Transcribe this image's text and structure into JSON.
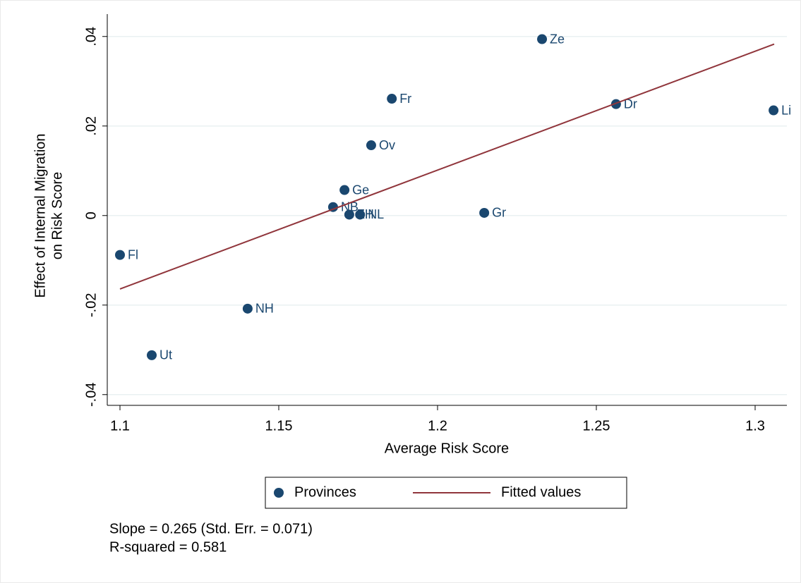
{
  "chart_data": {
    "type": "scatter",
    "xlabel": "Average Risk Score",
    "ylabel": [
      "Effect of Internal Migration",
      "on Risk Score"
    ],
    "xlim": [
      1.096,
      1.31
    ],
    "ylim": [
      -0.0424,
      0.045
    ],
    "xticks": [
      1.1,
      1.15,
      1.2,
      1.25,
      1.3
    ],
    "yticks": [
      {
        "value": 0.04,
        "label": ".04"
      },
      {
        "value": 0.02,
        "label": ".02"
      },
      {
        "value": 0,
        "label": "0"
      },
      {
        "value": -0.02,
        "label": "-.02"
      },
      {
        "value": -0.04,
        "label": "-.04"
      }
    ],
    "grid": true,
    "series": [
      {
        "name": "Provinces",
        "color": "#1a476f",
        "mode": "points",
        "labels": [
          "Fl",
          "Ut",
          "NH",
          "NB",
          "Ge",
          "ZH",
          "NL",
          "Ov",
          "Fr",
          "Gr",
          "Ze",
          "Dr",
          "Li"
        ],
        "x": [
          1.1,
          1.11,
          1.1402,
          1.1671,
          1.1707,
          1.1722,
          1.1756,
          1.1791,
          1.1856,
          1.2147,
          1.2329,
          1.2562,
          1.3058
        ],
        "values": [
          -0.0088,
          -0.0312,
          -0.0208,
          0.0019,
          0.0057,
          0.0002,
          0.0002,
          0.0157,
          0.0261,
          0.0006,
          0.0394,
          0.0249,
          0.0235
        ]
      },
      {
        "name": "Fitted values",
        "color": "#90353b",
        "mode": "line",
        "x": [
          1.1,
          1.306
        ],
        "values": [
          -0.0164,
          0.0383
        ]
      }
    ],
    "notes": [
      "Slope = 0.265 (Std. Err. = 0.071)",
      "R-squared = 0.581"
    ]
  }
}
